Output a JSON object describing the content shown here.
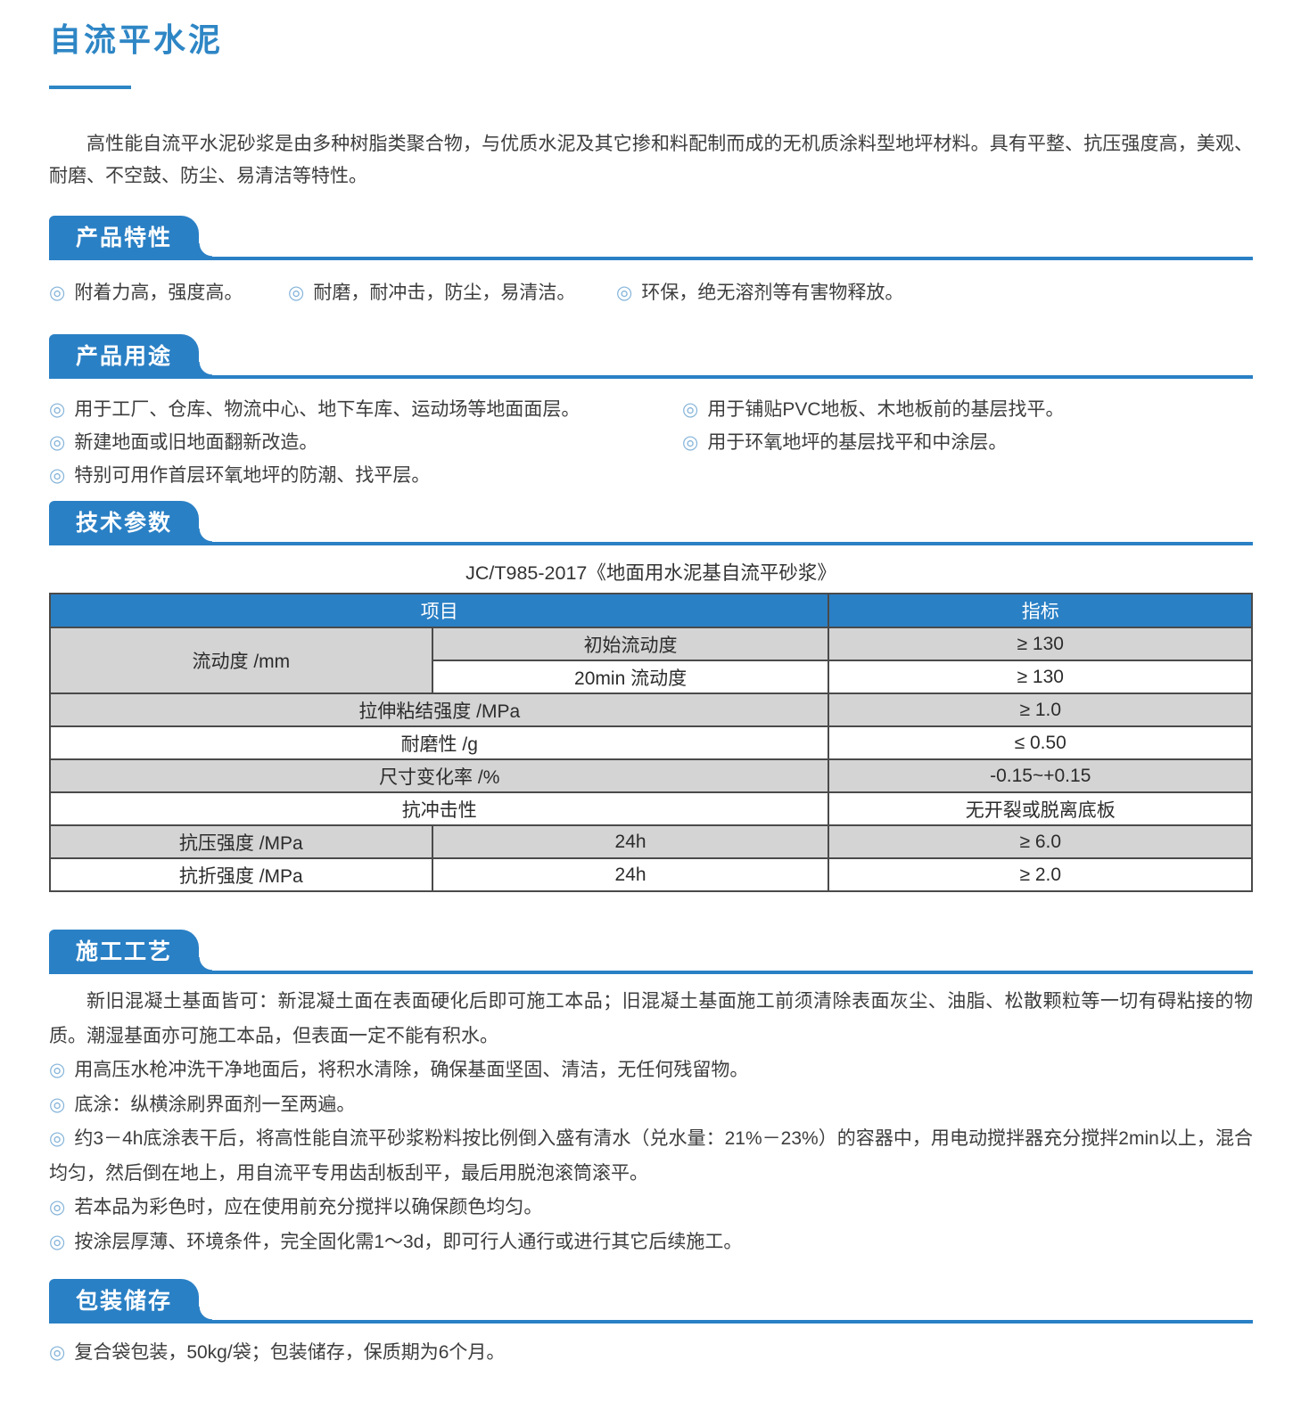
{
  "ui": {
    "bullet": "◎"
  },
  "colors": {
    "accent_blue": "#2a80c5",
    "title_blue": "#2e86c5",
    "table_header_blue": "#2a80c5",
    "table_gray_row": "#d4d4d4",
    "body_text": "#3d3d3d"
  },
  "page": {
    "title": "自流平水泥",
    "intro": "高性能自流平水泥砂浆是由多种树脂类聚合物，与优质水泥及其它掺和料配制而成的无机质涂料型地坪材料。具有平整、抗压强度高，美观、耐磨、不空鼓、防尘、易清洁等特性。"
  },
  "sections": {
    "features": {
      "heading": "产品特性",
      "items": [
        "附着力高，强度高。",
        "耐磨，耐冲击，防尘，易清洁。",
        "环保，绝无溶剂等有害物释放。"
      ]
    },
    "uses": {
      "heading": "产品用途",
      "left_items": [
        "用于工厂、仓库、物流中心、地下车库、运动场等地面面层。",
        "新建地面或旧地面翻新改造。",
        "特别可用作首层环氧地坪的防潮、找平层。"
      ],
      "right_items": [
        "用于铺贴PVC地板、木地板前的基层找平。",
        "用于环氧地坪的基层找平和中涂层。"
      ]
    },
    "specs": {
      "heading": "技术参数",
      "standard_caption": "JC/T985-2017《地面用水泥基自流平砂浆》",
      "table": {
        "col_headers": [
          "项目",
          "指标"
        ],
        "rows": [
          {
            "label": "流动度 /mm",
            "sub": "初始流动度",
            "value": "≥ 130"
          },
          {
            "sub": "20min 流动度",
            "value": "≥ 130"
          },
          {
            "label": "拉伸粘结强度 /MPa",
            "value": "≥ 1.0"
          },
          {
            "label": "耐磨性 /g",
            "value": "≤ 0.50"
          },
          {
            "label": "尺寸变化率 /%",
            "value": "-0.15~+0.15"
          },
          {
            "label": "抗冲击性",
            "value": "无开裂或脱离底板"
          },
          {
            "label": "抗压强度 /MPa",
            "sub": "24h",
            "value": "≥ 6.0"
          },
          {
            "label": "抗折强度 /MPa",
            "sub": "24h",
            "value": "≥ 2.0"
          }
        ]
      }
    },
    "process": {
      "heading": "施工工艺",
      "paragraph": "新旧混凝土基面皆可：新混凝土面在表面硬化后即可施工本品；旧混凝土基面施工前须清除表面灰尘、油脂、松散颗粒等一切有碍粘接的物质。潮湿基面亦可施工本品，但表面一定不能有积水。",
      "items": [
        "用高压水枪冲洗干净地面后，将积水清除，确保基面坚固、清洁，无任何残留物。",
        "底涂：纵横涂刷界面剂一至两遍。",
        "约3－4h底涂表干后，将高性能自流平砂浆粉料按比例倒入盛有清水（兑水量：21%－23%）的容器中，用电动搅拌器充分搅拌2min以上，混合均匀，然后倒在地上，用自流平专用齿刮板刮平，最后用脱泡滚筒滚平。",
        "若本品为彩色时，应在使用前充分搅拌以确保颜色均匀。",
        "按涂层厚薄、环境条件，完全固化需1～3d，即可行人通行或进行其它后续施工。"
      ]
    },
    "packaging": {
      "heading": "包装储存",
      "items": [
        "复合袋包装，50kg/袋；包装储存，保质期为6个月。"
      ]
    }
  }
}
